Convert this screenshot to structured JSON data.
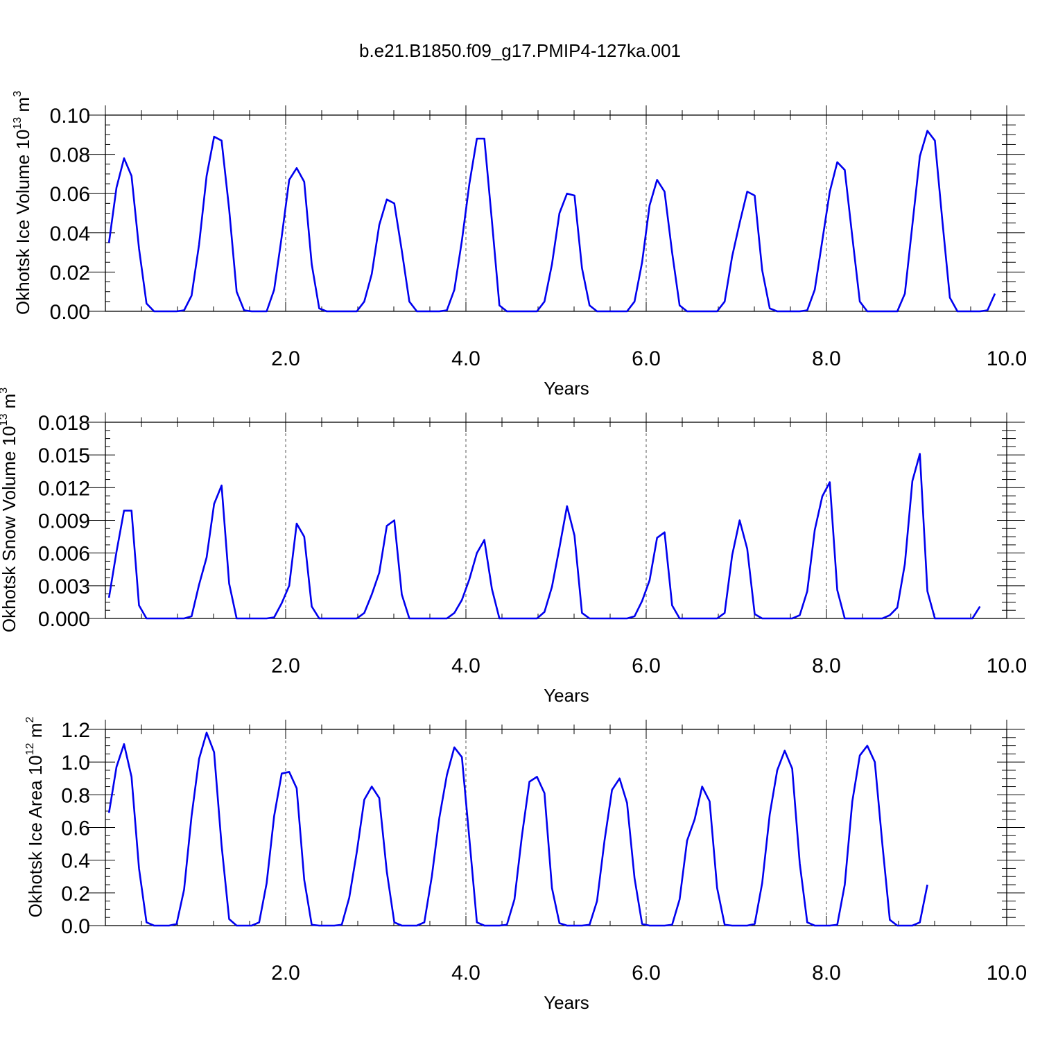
{
  "title": "b.e21.B1850.f09_g17.PMIP4-127ka.001",
  "chart_data": [
    {
      "type": "line",
      "title": "b.e21.B1850.f09_g17.PMIP4-127ka.001",
      "xlabel": "Years",
      "ylabel": "Okhotsk Ice Volume 10",
      "ylabel_exp": "13",
      "ylabel_unit": " m",
      "ylabel_unit_exp": "3",
      "xlim": [
        0.04,
        10.0
      ],
      "ylim": [
        0.0,
        0.1
      ],
      "xticks": [
        "2.0",
        "4.0",
        "6.0",
        "8.0",
        "10.0"
      ],
      "yticks": [
        "0.00",
        "0.02",
        "0.04",
        "0.06",
        "0.08",
        "0.10"
      ],
      "line_color": "#0000ee",
      "x_start": 0.04,
      "x_step": 0.0833,
      "values": [
        0.035,
        0.063,
        0.078,
        0.069,
        0.032,
        0.004,
        0,
        0,
        0,
        0,
        0.0005,
        0.008,
        0.034,
        0.069,
        0.089,
        0.087,
        0.052,
        0.01,
        0.0005,
        0,
        0,
        0,
        0.011,
        0.038,
        0.067,
        0.073,
        0.066,
        0.024,
        0.0015,
        0,
        0,
        0,
        0,
        0,
        0.005,
        0.019,
        0.044,
        0.057,
        0.055,
        0.031,
        0.005,
        0,
        0,
        0,
        0,
        0.0005,
        0.011,
        0.036,
        0.065,
        0.088,
        0.088,
        0.046,
        0.003,
        0,
        0,
        0,
        0,
        0,
        0.005,
        0.024,
        0.05,
        0.06,
        0.059,
        0.022,
        0.003,
        0,
        0,
        0,
        0,
        0,
        0.005,
        0.025,
        0.054,
        0.067,
        0.061,
        0.03,
        0.003,
        0,
        0,
        0,
        0,
        0,
        0.005,
        0.028,
        0.045,
        0.061,
        0.059,
        0.021,
        0.0015,
        0,
        0,
        0,
        0,
        0.0005,
        0.011,
        0.036,
        0.061,
        0.076,
        0.072,
        0.038,
        0.005,
        0,
        0,
        0,
        0,
        0,
        0.009,
        0.044,
        0.079,
        0.092,
        0.087,
        0.046,
        0.007,
        0,
        0,
        0,
        0,
        0.0005,
        0.009
      ]
    },
    {
      "type": "line",
      "xlabel": "Years",
      "ylabel": "Okhotsk Snow Volume 10",
      "ylabel_exp": "13",
      "ylabel_unit": " m",
      "ylabel_unit_exp": "3",
      "xlim": [
        0.04,
        10.0
      ],
      "ylim": [
        0.0,
        0.018
      ],
      "xticks": [
        "2.0",
        "4.0",
        "6.0",
        "8.0",
        "10.0"
      ],
      "yticks": [
        "0.000",
        "0.003",
        "0.006",
        "0.009",
        "0.012",
        "0.015",
        "0.018"
      ],
      "line_color": "#0000ee",
      "x_start": 0.04,
      "x_step": 0.0833,
      "values": [
        0.0019,
        0.0061,
        0.0099,
        0.0099,
        0.0012,
        0,
        0,
        0,
        0,
        0,
        0,
        0.0002,
        0.0031,
        0.0056,
        0.0105,
        0.0122,
        0.0032,
        0,
        0,
        0,
        0,
        0,
        0.0001,
        0.0014,
        0.003,
        0.0087,
        0.0075,
        0.0011,
        0,
        0,
        0,
        0,
        0,
        0,
        0.0005,
        0.0022,
        0.0042,
        0.0085,
        0.009,
        0.0022,
        0,
        0,
        0,
        0,
        0,
        0,
        0.0005,
        0.0017,
        0.0036,
        0.006,
        0.0072,
        0.0027,
        0,
        0,
        0,
        0,
        0,
        0,
        0.0006,
        0.0029,
        0.0065,
        0.0103,
        0.0076,
        0.0005,
        0,
        0,
        0,
        0,
        0,
        0,
        0.0002,
        0.0016,
        0.0035,
        0.0074,
        0.0079,
        0.0012,
        0,
        0,
        0,
        0,
        0,
        0,
        0.0005,
        0.0058,
        0.009,
        0.0064,
        0.0004,
        0,
        0,
        0,
        0,
        0,
        0.0003,
        0.0025,
        0.0081,
        0.0112,
        0.0125,
        0.0026,
        0,
        0,
        0,
        0,
        0,
        0,
        0.0003,
        0.001,
        0.005,
        0.0126,
        0.0151,
        0.0025,
        0,
        0,
        0,
        0,
        0,
        0,
        0.0011
      ]
    },
    {
      "type": "line",
      "xlabel": "Years",
      "ylabel": "Okhotsk Ice Area 10",
      "ylabel_exp": "12",
      "ylabel_unit": " m",
      "ylabel_unit_exp": "2",
      "xlim": [
        0.04,
        10.0
      ],
      "ylim": [
        0.0,
        1.2
      ],
      "xticks": [
        "2.0",
        "4.0",
        "6.0",
        "8.0",
        "10.0"
      ],
      "yticks": [
        "0.0",
        "0.2",
        "0.4",
        "0.6",
        "0.8",
        "1.0",
        "1.2"
      ],
      "line_color": "#0000ee",
      "x_start": 0.04,
      "x_step": 0.0833,
      "values": [
        0.69,
        0.97,
        1.11,
        0.91,
        0.35,
        0.02,
        0,
        0,
        0,
        0.01,
        0.22,
        0.67,
        1.02,
        1.18,
        1.06,
        0.49,
        0.04,
        0,
        0,
        0,
        0.02,
        0.26,
        0.67,
        0.93,
        0.94,
        0.84,
        0.28,
        0.005,
        0,
        0,
        0,
        0.005,
        0.17,
        0.45,
        0.77,
        0.85,
        0.78,
        0.33,
        0.02,
        0,
        0,
        0,
        0.02,
        0.3,
        0.66,
        0.92,
        1.09,
        1.03,
        0.53,
        0.02,
        0,
        0,
        0,
        0.005,
        0.16,
        0.55,
        0.88,
        0.91,
        0.81,
        0.23,
        0.015,
        0,
        0,
        0,
        0.005,
        0.15,
        0.52,
        0.83,
        0.9,
        0.75,
        0.29,
        0.01,
        0,
        0,
        0,
        0.005,
        0.16,
        0.52,
        0.65,
        0.85,
        0.76,
        0.23,
        0.005,
        0,
        0,
        0,
        0.01,
        0.26,
        0.68,
        0.95,
        1.07,
        0.96,
        0.38,
        0.02,
        0,
        0,
        0,
        0.005,
        0.25,
        0.76,
        1.04,
        1.1,
        1.0,
        0.5,
        0.035,
        0,
        0,
        0,
        0.02,
        0.25
      ]
    }
  ]
}
